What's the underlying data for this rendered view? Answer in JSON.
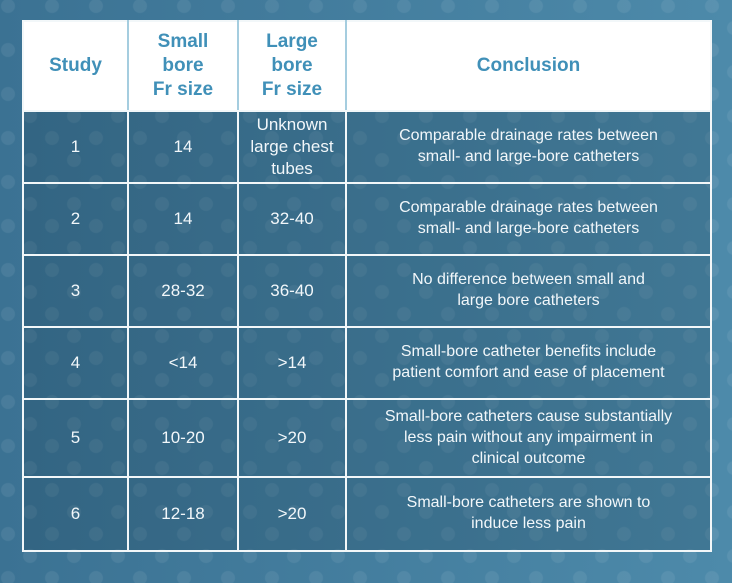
{
  "colors": {
    "background_left": "#3b7293",
    "background_right": "#4d8aaa",
    "dot_pattern": "rgba(255,255,255,0.07)",
    "header_background": "#ffffff",
    "header_text": "#4090b8",
    "header_divider": "#a5cddf",
    "grid_line": "#f2f7f9",
    "cell_background": "#407a99",
    "body_text": "#f2f7fa"
  },
  "chart_data": {
    "type": "table",
    "title": "",
    "columns": [
      "Study",
      "Small bore Fr size",
      "Large bore Fr size",
      "Conclusion"
    ],
    "rows": [
      [
        "1",
        "14",
        "Unknown large chest tubes",
        "Comparable drainage rates between small- and large-bore catheters"
      ],
      [
        "2",
        "14",
        "32-40",
        "Comparable drainage rates between small- and large-bore catheters"
      ],
      [
        "3",
        "28-32",
        "36-40",
        "No difference between small and large bore catheters"
      ],
      [
        "4",
        "<14",
        ">14",
        "Small-bore catheter benefits include patient comfort and ease of placement"
      ],
      [
        "5",
        "10-20",
        ">20",
        "Small-bore catheters cause substantially less pain without any impairment in clinical outcome"
      ],
      [
        "6",
        "12-18",
        ">20",
        "Small-bore catheters are shown to induce less pain"
      ]
    ]
  },
  "display": {
    "headers": [
      "Study",
      "Small\nbore\nFr size",
      "Large\nbore\nFr size",
      "Conclusion"
    ],
    "rows": [
      [
        "1",
        "14",
        "Unknown\nlarge chest\ntubes",
        "Comparable drainage rates between\nsmall- and large-bore catheters"
      ],
      [
        "2",
        "14",
        "32-40",
        "Comparable drainage rates between\nsmall- and large-bore catheters"
      ],
      [
        "3",
        "28-32",
        "36-40",
        "No difference between small and\nlarge bore catheters"
      ],
      [
        "4",
        "<14",
        ">14",
        "Small-bore catheter benefits include\npatient comfort and ease of placement"
      ],
      [
        "5",
        "10-20",
        ">20",
        "Small-bore catheters cause substantially\nless pain without any impairment in\nclinical outcome"
      ],
      [
        "6",
        "12-18",
        ">20",
        "Small-bore catheters are shown to\ninduce less pain"
      ]
    ]
  }
}
